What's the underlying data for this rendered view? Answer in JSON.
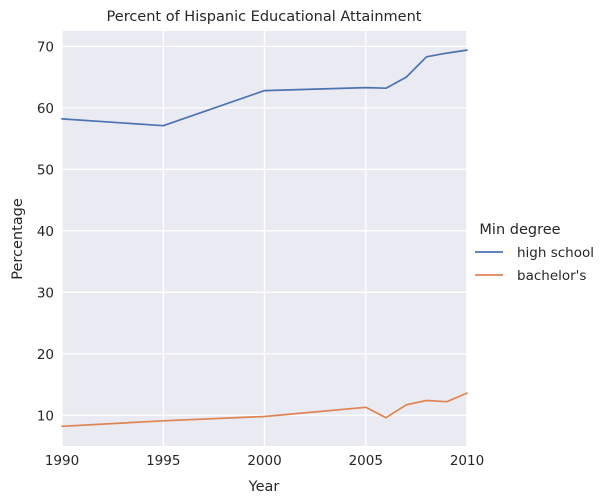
{
  "chart_data": {
    "type": "line",
    "title": "Percent of Hispanic Educational Attainment",
    "xlabel": "Year",
    "ylabel": "Percentage",
    "xlim": [
      1990,
      2010
    ],
    "ylim": [
      5,
      72.5
    ],
    "x_ticks": [
      1990,
      1995,
      2000,
      2005,
      2010
    ],
    "y_ticks": [
      10,
      20,
      30,
      40,
      50,
      60,
      70
    ],
    "grid": true,
    "legend": {
      "title": "Min degree",
      "placement": "right"
    },
    "series": [
      {
        "name": "high school",
        "color": "#4c72b0",
        "x": [
          1990,
          1995,
          2000,
          2005,
          2006,
          2007,
          2008,
          2009,
          2010
        ],
        "y": [
          58.2,
          57.1,
          62.8,
          63.3,
          63.2,
          65.0,
          68.3,
          68.9,
          69.4
        ]
      },
      {
        "name": "bachelor's",
        "color": "#dd8452",
        "x": [
          1990,
          1995,
          2000,
          2005,
          2006,
          2007,
          2008,
          2009,
          2010
        ],
        "y": [
          8.2,
          9.1,
          9.8,
          11.3,
          9.6,
          11.7,
          12.4,
          12.2,
          13.6
        ]
      }
    ]
  }
}
